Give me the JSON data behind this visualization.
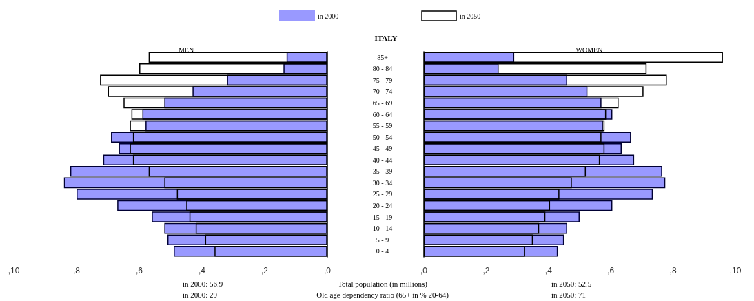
{
  "chart_data": [
    {
      "type": "bar",
      "orientation": "horizontal",
      "title": "ITALY",
      "subtitle": "MEN",
      "categories": [
        "85+",
        "80 - 84",
        "75 - 79",
        "70 - 74",
        "65 - 69",
        "60 - 64",
        "55 - 59",
        "50 - 54",
        "45 - 49",
        "40 - 44",
        "35 - 39",
        "30 - 34",
        "25 - 29",
        "20 - 24",
        "15 - 19",
        "10 - 14",
        "5 - 9",
        "0 - 4"
      ],
      "series": [
        {
          "name": "in 2000",
          "color": "#9999ff",
          "values": [
            1.3,
            1.4,
            3.2,
            4.3,
            5.2,
            5.9,
            5.8,
            6.9,
            6.65,
            7.15,
            8.2,
            8.4,
            8.0,
            6.7,
            5.6,
            5.2,
            5.1,
            4.9
          ]
        },
        {
          "name": "in 2050",
          "color": "#000000",
          "values": [
            5.7,
            6.0,
            7.25,
            7.0,
            6.5,
            6.25,
            6.3,
            6.2,
            6.3,
            6.2,
            5.7,
            5.2,
            4.8,
            4.5,
            4.4,
            4.2,
            3.9,
            3.6
          ]
        }
      ],
      "xlim": [
        10,
        0
      ],
      "xticks": [
        {
          "value": 10,
          "label": ",10"
        },
        {
          "value": 8,
          "label": ",8"
        },
        {
          "value": 6,
          "label": ",6"
        },
        {
          "value": 4,
          "label": ",4"
        },
        {
          "value": 2,
          "label": ",2"
        },
        {
          "value": 0,
          "label": ",0"
        }
      ],
      "ref_lines": [
        {
          "axis": "x",
          "value": 8,
          "color": "#c0c0c0"
        }
      ],
      "legend": "top",
      "annotations": [
        "in 2000: 56.9",
        "in 2000: 29",
        "Total population (in millions)",
        "Old age dependency ratio (65+ in % 20-64)"
      ]
    },
    {
      "type": "bar",
      "orientation": "horizontal",
      "subtitle": "WOMEN",
      "categories": [
        null,
        null,
        null,
        null,
        null,
        null,
        null,
        null,
        null,
        null,
        null,
        null,
        null,
        null,
        null,
        null,
        null,
        null
      ],
      "series": [
        {
          "color": "#9999ff",
          "values": [
            2.9,
            2.4,
            4.6,
            5.25,
            5.7,
            6.05,
            5.75,
            6.65,
            6.35,
            6.75,
            7.65,
            7.75,
            7.35,
            6.05,
            5.0,
            4.6,
            4.5,
            4.3
          ]
        },
        {
          "color": "#000000",
          "values": [
            9.6,
            7.15,
            7.8,
            7.05,
            6.25,
            5.85,
            5.8,
            5.7,
            5.8,
            5.65,
            5.2,
            4.75,
            4.35,
            4.05,
            3.9,
            3.7,
            3.5,
            3.25
          ]
        }
      ],
      "xlim": [
        0,
        10
      ],
      "xticks": [
        {
          "value": 0,
          "label": ",0"
        },
        {
          "value": 2,
          "label": ",2"
        },
        {
          "value": 4,
          "label": ",4"
        },
        {
          "value": 6,
          "label": ",6"
        },
        {
          "value": 8,
          "label": ",8"
        },
        {
          "value": 10,
          "label": ",10"
        }
      ],
      "ref_lines": [
        {
          "axis": "x",
          "value": 4,
          "color": "#c0c0c0"
        }
      ],
      "annotations": [
        "in 2050: 52.5",
        "in 2050: 71"
      ]
    }
  ]
}
